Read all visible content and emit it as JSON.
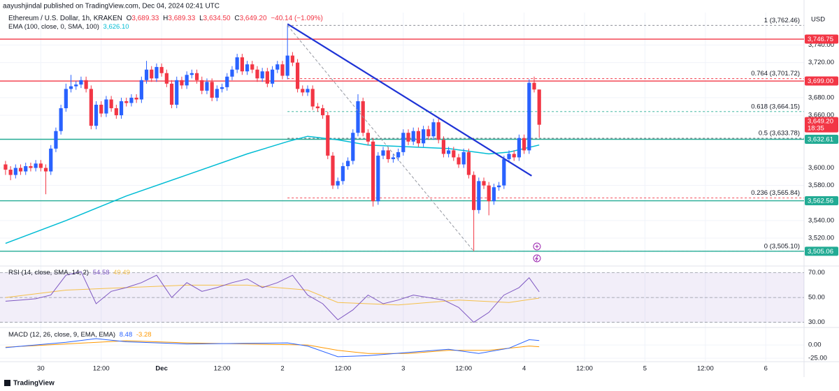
{
  "header": {
    "publisher": "aayushjindal published on TradingView.com, Dec 04, 2024 02:41 UTC",
    "footer": "TradingView"
  },
  "chart_data": {
    "type": "candlestick",
    "title": "Ethereum / U.S. Dollar, 1h, KRAKEN",
    "ohlc": [
      {
        "label": "O",
        "value": "3,689.33"
      },
      {
        "label": "H",
        "value": "3,689.33"
      },
      {
        "label": "L",
        "value": "3,634.50"
      },
      {
        "label": "C",
        "value": "3,649.20"
      }
    ],
    "change": "−40.14 (−1.09%)",
    "currency": "USD",
    "up_color": "#2962ff",
    "down_color": "#f23645",
    "xlim": [
      -1.1,
      158.6
    ],
    "xticks": [
      {
        "value": 7,
        "label": "30"
      },
      {
        "value": 19,
        "label": "12:00"
      },
      {
        "value": 31,
        "label": "Dec"
      },
      {
        "value": 43,
        "label": "12:00"
      },
      {
        "value": 55,
        "label": "2"
      },
      {
        "value": 67,
        "label": "12:00"
      },
      {
        "value": 79,
        "label": "3"
      },
      {
        "value": 91,
        "label": "12:00"
      },
      {
        "value": 103,
        "label": "4"
      },
      {
        "value": 115,
        "label": "12:00"
      },
      {
        "value": 127,
        "label": "5"
      },
      {
        "value": 139,
        "label": "12:00"
      },
      {
        "value": 151,
        "label": "6"
      }
    ],
    "ylim": [
      3493,
      3777
    ],
    "yticks": [
      {
        "value": 3740,
        "label": "3,740.00"
      },
      {
        "value": 3720,
        "label": "3,720.00"
      },
      {
        "value": 3680,
        "label": "3,680.00"
      },
      {
        "value": 3660,
        "label": "3,660.00"
      },
      {
        "value": 3600,
        "label": "3,600.00"
      },
      {
        "value": 3580,
        "label": "3,580.00"
      },
      {
        "value": 3540,
        "label": "3,540.00"
      },
      {
        "value": 3520,
        "label": "3,520.00"
      }
    ],
    "grid": true,
    "x": [
      0,
      1,
      2,
      3,
      4,
      5,
      6,
      7,
      8,
      9,
      10,
      11,
      12,
      13,
      14,
      15,
      16,
      17,
      18,
      19,
      20,
      21,
      22,
      23,
      24,
      25,
      26,
      27,
      28,
      29,
      30,
      31,
      32,
      33,
      34,
      35,
      36,
      37,
      38,
      39,
      40,
      41,
      42,
      43,
      44,
      45,
      46,
      47,
      48,
      49,
      50,
      51,
      52,
      53,
      54,
      55,
      56,
      57,
      58,
      59,
      60,
      61,
      62,
      63,
      64,
      65,
      66,
      67,
      68,
      69,
      70,
      71,
      72,
      73,
      74,
      75,
      76,
      77,
      78,
      79,
      80,
      81,
      82,
      83,
      84,
      85,
      86,
      87,
      88,
      89,
      90,
      91,
      92,
      93,
      94,
      95,
      96,
      97,
      98,
      99,
      100,
      101,
      102,
      103,
      104,
      105,
      106
    ],
    "open": [
      3604,
      3598,
      3592,
      3600,
      3596,
      3602,
      3600,
      3605,
      3600,
      3596,
      3622,
      3642,
      3668,
      3690,
      3693,
      3695,
      3700,
      3690,
      3648,
      3672,
      3662,
      3678,
      3668,
      3660,
      3676,
      3674,
      3680,
      3678,
      3700,
      3712,
      3702,
      3715,
      3708,
      3696,
      3672,
      3700,
      3694,
      3706,
      3708,
      3700,
      3688,
      3698,
      3680,
      3690,
      3692,
      3704,
      3712,
      3726,
      3710,
      3718,
      3712,
      3702,
      3710,
      3696,
      3712,
      3718,
      3705,
      3728,
      3720,
      3690,
      3686,
      3690,
      3670,
      3668,
      3660,
      3614,
      3580,
      3585,
      3602,
      3608,
      3640,
      3676,
      3640,
      3630,
      3562,
      3614,
      3620,
      3610,
      3612,
      3618,
      3640,
      3630,
      3642,
      3628,
      3644,
      3636,
      3652,
      3632,
      3616,
      3620,
      3612,
      3604,
      3618,
      3592,
      3552,
      3585,
      3580,
      3562,
      3578,
      3580,
      3610,
      3616,
      3612,
      3634,
      3620,
      3697,
      3689.33
    ],
    "high": [
      3608,
      3602,
      3604,
      3604,
      3606,
      3606,
      3609,
      3609,
      3604,
      3626,
      3646,
      3672,
      3696,
      3706,
      3699,
      3704,
      3704,
      3694,
      3676,
      3676,
      3682,
      3682,
      3672,
      3680,
      3680,
      3684,
      3684,
      3704,
      3722,
      3716,
      3719,
      3719,
      3712,
      3700,
      3704,
      3704,
      3710,
      3712,
      3712,
      3704,
      3702,
      3702,
      3694,
      3696,
      3708,
      3716,
      3730,
      3730,
      3722,
      3722,
      3716,
      3714,
      3714,
      3716,
      3722,
      3722,
      3762.46,
      3732,
      3724,
      3694,
      3694,
      3694,
      3674,
      3672,
      3664,
      3618,
      3589,
      3606,
      3612,
      3644,
      3684,
      3680,
      3644,
      3634,
      3618,
      3624,
      3624,
      3616,
      3622,
      3644,
      3644,
      3646,
      3646,
      3648,
      3648,
      3656,
      3656,
      3636,
      3624,
      3624,
      3616,
      3622,
      3622,
      3596,
      3589,
      3589,
      3584,
      3582,
      3584,
      3614,
      3620,
      3620,
      3638,
      3638,
      3701,
      3704,
      3689.33
    ],
    "low": [
      3592,
      3586,
      3588,
      3592,
      3592,
      3596,
      3596,
      3596,
      3570,
      3592,
      3618,
      3638,
      3664,
      3686,
      3689,
      3691,
      3686,
      3644,
      3644,
      3658,
      3658,
      3664,
      3656,
      3656,
      3670,
      3670,
      3674,
      3674,
      3696,
      3698,
      3698,
      3704,
      3692,
      3668,
      3668,
      3690,
      3690,
      3702,
      3696,
      3684,
      3684,
      3676,
      3676,
      3686,
      3688,
      3700,
      3708,
      3706,
      3706,
      3708,
      3698,
      3698,
      3692,
      3692,
      3708,
      3701,
      3701,
      3716,
      3686,
      3682,
      3682,
      3666,
      3664,
      3656,
      3610,
      3576,
      3576,
      3581,
      3598,
      3604,
      3636,
      3636,
      3626,
      3556,
      3558,
      3610,
      3606,
      3606,
      3608,
      3614,
      3626,
      3626,
      3624,
      3624,
      3632,
      3632,
      3628,
      3612,
      3612,
      3608,
      3600,
      3600,
      3588,
      3505.1,
      3548,
      3576,
      3546,
      3558,
      3574,
      3576,
      3606,
      3608,
      3608,
      3616,
      3616,
      3686,
      3634.5
    ],
    "close": [
      3598,
      3592,
      3600,
      3596,
      3602,
      3600,
      3605,
      3600,
      3596,
      3622,
      3642,
      3668,
      3690,
      3693,
      3695,
      3700,
      3690,
      3648,
      3672,
      3662,
      3678,
      3668,
      3660,
      3676,
      3674,
      3680,
      3678,
      3700,
      3712,
      3702,
      3715,
      3708,
      3696,
      3672,
      3700,
      3694,
      3706,
      3708,
      3700,
      3688,
      3698,
      3680,
      3690,
      3692,
      3704,
      3712,
      3726,
      3710,
      3718,
      3712,
      3702,
      3710,
      3696,
      3712,
      3718,
      3705,
      3728,
      3720,
      3690,
      3686,
      3690,
      3670,
      3668,
      3660,
      3614,
      3580,
      3585,
      3602,
      3608,
      3640,
      3676,
      3640,
      3630,
      3562,
      3614,
      3620,
      3610,
      3612,
      3618,
      3640,
      3630,
      3642,
      3628,
      3644,
      3636,
      3652,
      3632,
      3616,
      3620,
      3612,
      3604,
      3618,
      3592,
      3552,
      3585,
      3580,
      3562,
      3578,
      3580,
      3610,
      3616,
      3612,
      3634,
      3620,
      3697,
      3689.33,
      3649.2
    ],
    "ema": {
      "name": "EMA (100, close, 0, SMA, 100)",
      "legend_value": "3,626.10",
      "color": "#00bcd4",
      "x": [
        0,
        12,
        24,
        36,
        48,
        56,
        60,
        66,
        72,
        80,
        88,
        96,
        100,
        106
      ],
      "values": [
        3514,
        3540,
        3568,
        3592,
        3616,
        3630,
        3636,
        3632,
        3626,
        3624,
        3622,
        3616,
        3618,
        3626.1
      ]
    },
    "levels": [
      {
        "value": 3746.75,
        "label": "3,746.75",
        "color": "#f23645"
      },
      {
        "value": 3699,
        "label": "3,699.00",
        "color": "#f23645"
      },
      {
        "value": 3632.61,
        "label": "3,632.61",
        "color": "#22ab94"
      },
      {
        "value": 3562.56,
        "label": "3,562.56",
        "color": "#22ab94"
      },
      {
        "value": 3505.06,
        "label": "3,505.06",
        "color": "#22ab94"
      }
    ],
    "last_price": {
      "value": 3649.2,
      "label": "3,649.20",
      "countdown": "18:35",
      "color": "#f23645"
    },
    "fib": [
      {
        "value": 3762.46,
        "label": "1 (3,762.46)",
        "color": "#787b86"
      },
      {
        "value": 3701.72,
        "label": "0.764 (3,701.72)",
        "color": "#f23645"
      },
      {
        "value": 3664.15,
        "label": "0.618 (3,664.15)",
        "color": "#22ab94"
      },
      {
        "value": 3633.78,
        "label": "0.5 (3,633.78)",
        "color": "#4c525e"
      },
      {
        "value": 3565.84,
        "label": "0.236 (3,565.84)",
        "color": "#f23645"
      },
      {
        "value": 3505.1,
        "label": "0 (3,505.10)",
        "color": "#787b86"
      }
    ],
    "trendline": {
      "color": "#1e33d6",
      "x": [
        56,
        104.5
      ],
      "values": [
        3764,
        3591
      ]
    },
    "fib_diagonal": {
      "color": "#9598a1",
      "x": [
        56,
        93
      ],
      "values": [
        3762.46,
        3505.1
      ]
    },
    "rsi": {
      "name": "RSI (14, close, SMA, 14, 2)",
      "legend_value": "54.58",
      "ma_legend_value": "49.49",
      "color": "#7e57c2",
      "ma_color": "#f5c04a",
      "ylim": [
        27.5,
        71.5
      ],
      "yticks": [
        {
          "value": 70,
          "label": "70.00"
        },
        {
          "value": 50,
          "label": "50.00"
        },
        {
          "value": 30,
          "label": "30.00"
        }
      ],
      "x": [
        0,
        3,
        6,
        9,
        12,
        15,
        18,
        21,
        24,
        27,
        30,
        33,
        36,
        39,
        42,
        45,
        48,
        51,
        54,
        57,
        60,
        63,
        66,
        69,
        72,
        75,
        78,
        81,
        84,
        87,
        90,
        93,
        96,
        99,
        102,
        104,
        106
      ],
      "values": [
        47,
        48,
        49,
        52,
        68,
        71,
        45,
        55,
        58,
        62,
        68,
        50,
        62,
        55,
        58,
        62,
        65,
        58,
        62,
        68,
        52,
        45,
        32,
        40,
        52,
        45,
        48,
        52,
        50,
        48,
        42,
        30,
        38,
        52,
        58,
        66,
        54.58
      ],
      "ma_x": [
        0,
        12,
        24,
        36,
        48,
        60,
        66,
        78,
        90,
        100,
        106
      ],
      "ma_values": [
        50,
        56,
        58,
        60,
        60,
        56,
        46,
        44,
        48,
        46,
        49.49
      ]
    },
    "macd": {
      "name": "MACD (12, 26, close, 9, EMA, EMA)",
      "legend_value": "8.48",
      "signal_legend_value": "-3.28",
      "color": "#2962ff",
      "signal_color": "#ff9800",
      "ylim": [
        -30,
        29
      ],
      "yticks": [
        {
          "value": 0,
          "label": "0.00"
        },
        {
          "value": -25,
          "label": "-25.00"
        }
      ],
      "x": [
        0,
        12,
        18,
        24,
        36,
        48,
        56,
        60,
        66,
        72,
        80,
        88,
        94,
        100,
        104,
        106
      ],
      "values": [
        -5,
        5,
        12,
        6,
        2,
        3,
        4,
        -2,
        -22,
        -20,
        -14,
        -8,
        -16,
        -6,
        10,
        8.48
      ],
      "signal_x": [
        0,
        12,
        24,
        36,
        48,
        60,
        66,
        72,
        80,
        88,
        96,
        104,
        106
      ],
      "signal_values": [
        -4,
        2,
        8,
        4,
        2,
        0,
        -10,
        -16,
        -16,
        -10,
        -10,
        -2,
        -3.28
      ]
    }
  }
}
